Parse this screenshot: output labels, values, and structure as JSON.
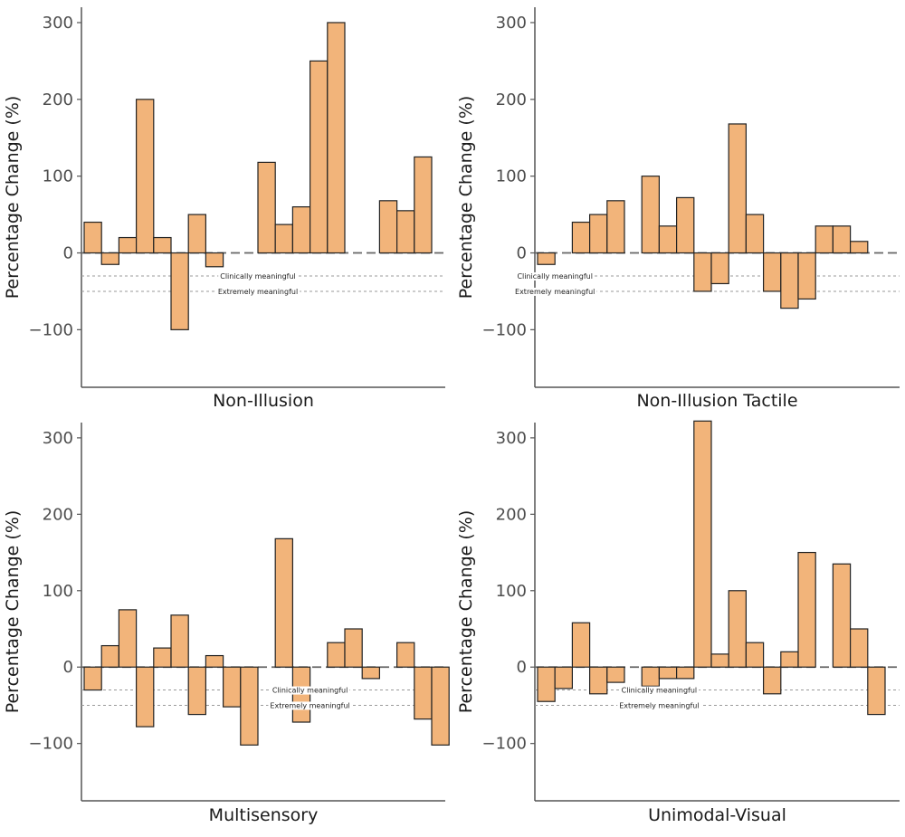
{
  "figure": {
    "colors": {
      "bar_fill": "#F2B47A",
      "bar_stroke": "#222222",
      "axis": "#555555",
      "ref_line": "#9a9a9a"
    }
  },
  "chart_data": [
    {
      "type": "bar",
      "panel": "top-left",
      "xlabel": "Non-Illusion",
      "ylabel": "Percentage Change (%)",
      "ylim": [
        -175,
        320
      ],
      "yticks": [
        -100,
        0,
        100,
        200,
        300
      ],
      "reference_lines": [
        {
          "y": -30,
          "label": "Clinically meaningful"
        },
        {
          "y": -50,
          "label": "Extremely meaningful"
        }
      ],
      "label_position": 10,
      "values": [
        40,
        -15,
        20,
        200,
        20,
        -100,
        50,
        -18,
        0,
        0,
        118,
        37,
        60,
        250,
        300,
        0,
        0,
        68,
        55,
        125
      ]
    },
    {
      "type": "bar",
      "panel": "top-right",
      "xlabel": "Non-Illusion Tactile",
      "ylabel": "Percentage Change (%)",
      "ylim": [
        -175,
        320
      ],
      "yticks": [
        -100,
        0,
        100,
        200,
        300
      ],
      "reference_lines": [
        {
          "y": -30,
          "label": "Clinically meaningful"
        },
        {
          "y": -50,
          "label": "Extremely meaningful"
        }
      ],
      "label_position": 1,
      "values": [
        -15,
        0,
        40,
        50,
        68,
        0,
        100,
        35,
        72,
        -50,
        -40,
        168,
        50,
        -50,
        -72,
        -60,
        35,
        35,
        15,
        0
      ]
    },
    {
      "type": "bar",
      "panel": "bottom-left",
      "xlabel": "Multisensory",
      "ylabel": "Percentage Change (%)",
      "ylim": [
        -175,
        320
      ],
      "yticks": [
        -100,
        0,
        100,
        200,
        300
      ],
      "reference_lines": [
        {
          "y": -30,
          "label": "Clinically meaningful"
        },
        {
          "y": -50,
          "label": "Extremely meaningful"
        }
      ],
      "label_position": 13,
      "values": [
        -30,
        28,
        75,
        -78,
        25,
        68,
        -62,
        15,
        -52,
        -102,
        0,
        168,
        -72,
        0,
        32,
        50,
        -15,
        0,
        32,
        -68,
        -102
      ]
    },
    {
      "type": "bar",
      "panel": "bottom-right",
      "xlabel": "Unimodal-Visual",
      "ylabel": "Percentage Change (%)",
      "ylim": [
        -175,
        320
      ],
      "yticks": [
        -100,
        0,
        100,
        200,
        300
      ],
      "reference_lines": [
        {
          "y": -30,
          "label": "Clinically meaningful"
        },
        {
          "y": -50,
          "label": "Extremely meaningful"
        }
      ],
      "label_position": 7,
      "values": [
        -45,
        -28,
        58,
        -35,
        -20,
        0,
        -25,
        -15,
        -15,
        322,
        17,
        100,
        32,
        -35,
        20,
        150,
        0,
        135,
        50,
        -62
      ]
    }
  ]
}
